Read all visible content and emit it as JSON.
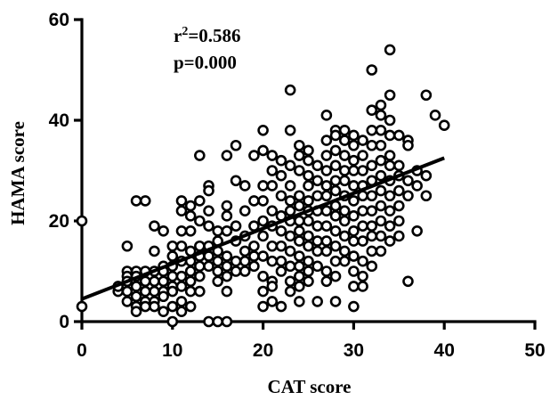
{
  "chart_data": {
    "type": "scatter",
    "title": "",
    "xlabel": "CAT score",
    "ylabel": "HAMA score",
    "xlim": [
      0,
      50
    ],
    "ylim": [
      0,
      60
    ],
    "xticks": [
      0,
      10,
      20,
      30,
      40,
      50
    ],
    "yticks": [
      0,
      20,
      40,
      60
    ],
    "grid": false,
    "annotations": {
      "r2_prefix": "r",
      "r2_sup": "2",
      "r2_value": "=0.586",
      "p_text": "p=0.000"
    },
    "fit_line": {
      "x": [
        0,
        40
      ],
      "y": [
        4.5,
        32.5
      ]
    },
    "points": [
      [
        0,
        20
      ],
      [
        0,
        3
      ],
      [
        4,
        6
      ],
      [
        4,
        7
      ],
      [
        5,
        15
      ],
      [
        5,
        10
      ],
      [
        5,
        9
      ],
      [
        5,
        8
      ],
      [
        5,
        6
      ],
      [
        5,
        4
      ],
      [
        6,
        24
      ],
      [
        6,
        10
      ],
      [
        6,
        9
      ],
      [
        6,
        7
      ],
      [
        6,
        5
      ],
      [
        6,
        3
      ],
      [
        6,
        2
      ],
      [
        7,
        24
      ],
      [
        7,
        10
      ],
      [
        7,
        8
      ],
      [
        7,
        6
      ],
      [
        7,
        4
      ],
      [
        7,
        3
      ],
      [
        8,
        19
      ],
      [
        8,
        14
      ],
      [
        8,
        10
      ],
      [
        8,
        8
      ],
      [
        8,
        6
      ],
      [
        8,
        4
      ],
      [
        8,
        3
      ],
      [
        9,
        18
      ],
      [
        9,
        11
      ],
      [
        9,
        10
      ],
      [
        9,
        8
      ],
      [
        9,
        6
      ],
      [
        9,
        5
      ],
      [
        9,
        2
      ],
      [
        10,
        15
      ],
      [
        10,
        13
      ],
      [
        10,
        11
      ],
      [
        10,
        9
      ],
      [
        10,
        7
      ],
      [
        10,
        6
      ],
      [
        10,
        3
      ],
      [
        10,
        0
      ],
      [
        11,
        24
      ],
      [
        11,
        22
      ],
      [
        11,
        18
      ],
      [
        11,
        15
      ],
      [
        11,
        12
      ],
      [
        11,
        9
      ],
      [
        11,
        7
      ],
      [
        11,
        4
      ],
      [
        11,
        2
      ],
      [
        12,
        23
      ],
      [
        12,
        21
      ],
      [
        12,
        18
      ],
      [
        12,
        14
      ],
      [
        12,
        12
      ],
      [
        12,
        10
      ],
      [
        12,
        8
      ],
      [
        12,
        6
      ],
      [
        12,
        3
      ],
      [
        13,
        33
      ],
      [
        13,
        24
      ],
      [
        13,
        20
      ],
      [
        13,
        15
      ],
      [
        13,
        13
      ],
      [
        13,
        11
      ],
      [
        13,
        9
      ],
      [
        13,
        6
      ],
      [
        14,
        27
      ],
      [
        14,
        26
      ],
      [
        14,
        22
      ],
      [
        14,
        19
      ],
      [
        14,
        15
      ],
      [
        14,
        13
      ],
      [
        14,
        11
      ],
      [
        14,
        0
      ],
      [
        15,
        18
      ],
      [
        15,
        16
      ],
      [
        15,
        14
      ],
      [
        15,
        12
      ],
      [
        15,
        10
      ],
      [
        15,
        8
      ],
      [
        15,
        0
      ],
      [
        16,
        33
      ],
      [
        16,
        23
      ],
      [
        16,
        21
      ],
      [
        16,
        18
      ],
      [
        16,
        13
      ],
      [
        16,
        11
      ],
      [
        16,
        9
      ],
      [
        16,
        6
      ],
      [
        16,
        0
      ],
      [
        17,
        35
      ],
      [
        17,
        28
      ],
      [
        17,
        19
      ],
      [
        17,
        16
      ],
      [
        17,
        12
      ],
      [
        17,
        10
      ],
      [
        18,
        27
      ],
      [
        18,
        22
      ],
      [
        18,
        17
      ],
      [
        18,
        14
      ],
      [
        18,
        12
      ],
      [
        18,
        10
      ],
      [
        19,
        33
      ],
      [
        19,
        24
      ],
      [
        19,
        19
      ],
      [
        19,
        15
      ],
      [
        19,
        13
      ],
      [
        19,
        11
      ],
      [
        20,
        38
      ],
      [
        20,
        34
      ],
      [
        20,
        27
      ],
      [
        20,
        24
      ],
      [
        20,
        20
      ],
      [
        20,
        17
      ],
      [
        20,
        13
      ],
      [
        20,
        9
      ],
      [
        20,
        6
      ],
      [
        20,
        3
      ],
      [
        21,
        33
      ],
      [
        21,
        30
      ],
      [
        21,
        27
      ],
      [
        21,
        22
      ],
      [
        21,
        19
      ],
      [
        21,
        15
      ],
      [
        21,
        12
      ],
      [
        21,
        8
      ],
      [
        21,
        7
      ],
      [
        21,
        4
      ],
      [
        22,
        32
      ],
      [
        22,
        29
      ],
      [
        22,
        25
      ],
      [
        22,
        21
      ],
      [
        22,
        18
      ],
      [
        22,
        15
      ],
      [
        22,
        12
      ],
      [
        22,
        10
      ],
      [
        22,
        3
      ],
      [
        23,
        46
      ],
      [
        23,
        38
      ],
      [
        23,
        31
      ],
      [
        23,
        27
      ],
      [
        23,
        24
      ],
      [
        23,
        22
      ],
      [
        23,
        20
      ],
      [
        23,
        17
      ],
      [
        23,
        14
      ],
      [
        23,
        11
      ],
      [
        23,
        8
      ],
      [
        23,
        6
      ],
      [
        24,
        35
      ],
      [
        24,
        33
      ],
      [
        24,
        30
      ],
      [
        24,
        25
      ],
      [
        24,
        23
      ],
      [
        24,
        20
      ],
      [
        24,
        18
      ],
      [
        24,
        16
      ],
      [
        24,
        13
      ],
      [
        24,
        11
      ],
      [
        24,
        9
      ],
      [
        24,
        7
      ],
      [
        24,
        4
      ],
      [
        25,
        34
      ],
      [
        25,
        32
      ],
      [
        25,
        29
      ],
      [
        25,
        27
      ],
      [
        25,
        24
      ],
      [
        25,
        22
      ],
      [
        25,
        20
      ],
      [
        25,
        17
      ],
      [
        25,
        15
      ],
      [
        25,
        12
      ],
      [
        25,
        10
      ],
      [
        25,
        8
      ],
      [
        26,
        31
      ],
      [
        26,
        28
      ],
      [
        26,
        25
      ],
      [
        26,
        22
      ],
      [
        26,
        19
      ],
      [
        26,
        16
      ],
      [
        26,
        14
      ],
      [
        26,
        11
      ],
      [
        26,
        4
      ],
      [
        27,
        41
      ],
      [
        27,
        36
      ],
      [
        27,
        33
      ],
      [
        27,
        30
      ],
      [
        27,
        27
      ],
      [
        27,
        25
      ],
      [
        27,
        22
      ],
      [
        27,
        19
      ],
      [
        27,
        16
      ],
      [
        27,
        14
      ],
      [
        27,
        10
      ],
      [
        27,
        8
      ],
      [
        28,
        38
      ],
      [
        28,
        37
      ],
      [
        28,
        34
      ],
      [
        28,
        31
      ],
      [
        28,
        28
      ],
      [
        28,
        26
      ],
      [
        28,
        23
      ],
      [
        28,
        21
      ],
      [
        28,
        18
      ],
      [
        28,
        15
      ],
      [
        28,
        12
      ],
      [
        28,
        9
      ],
      [
        28,
        4
      ],
      [
        29,
        38
      ],
      [
        29,
        36
      ],
      [
        29,
        33
      ],
      [
        29,
        30
      ],
      [
        29,
        28
      ],
      [
        29,
        25
      ],
      [
        29,
        22
      ],
      [
        29,
        20
      ],
      [
        29,
        17
      ],
      [
        29,
        14
      ],
      [
        29,
        12
      ],
      [
        30,
        37
      ],
      [
        30,
        35
      ],
      [
        30,
        32
      ],
      [
        30,
        30
      ],
      [
        30,
        27
      ],
      [
        30,
        24
      ],
      [
        30,
        21
      ],
      [
        30,
        18
      ],
      [
        30,
        16
      ],
      [
        30,
        13
      ],
      [
        30,
        10
      ],
      [
        30,
        7
      ],
      [
        30,
        3
      ],
      [
        31,
        36
      ],
      [
        31,
        33
      ],
      [
        31,
        30
      ],
      [
        31,
        27
      ],
      [
        31,
        25
      ],
      [
        31,
        22
      ],
      [
        31,
        19
      ],
      [
        31,
        16
      ],
      [
        31,
        12
      ],
      [
        31,
        9
      ],
      [
        31,
        7
      ],
      [
        32,
        50
      ],
      [
        32,
        42
      ],
      [
        32,
        38
      ],
      [
        32,
        35
      ],
      [
        32,
        31
      ],
      [
        32,
        28
      ],
      [
        32,
        25
      ],
      [
        32,
        22
      ],
      [
        32,
        19
      ],
      [
        32,
        17
      ],
      [
        32,
        14
      ],
      [
        32,
        11
      ],
      [
        33,
        43
      ],
      [
        33,
        41
      ],
      [
        33,
        38
      ],
      [
        33,
        35
      ],
      [
        33,
        32
      ],
      [
        33,
        29
      ],
      [
        33,
        26
      ],
      [
        33,
        23
      ],
      [
        33,
        20
      ],
      [
        33,
        17
      ],
      [
        33,
        14
      ],
      [
        34,
        54
      ],
      [
        34,
        45
      ],
      [
        34,
        40
      ],
      [
        34,
        37
      ],
      [
        34,
        33
      ],
      [
        34,
        31
      ],
      [
        34,
        28
      ],
      [
        34,
        25
      ],
      [
        34,
        22
      ],
      [
        34,
        19
      ],
      [
        34,
        16
      ],
      [
        35,
        37
      ],
      [
        35,
        31
      ],
      [
        35,
        29
      ],
      [
        35,
        26
      ],
      [
        35,
        23
      ],
      [
        35,
        20
      ],
      [
        35,
        17
      ],
      [
        36,
        36
      ],
      [
        36,
        35
      ],
      [
        36,
        28
      ],
      [
        36,
        25
      ],
      [
        36,
        8
      ],
      [
        37,
        30
      ],
      [
        37,
        27
      ],
      [
        37,
        18
      ],
      [
        38,
        45
      ],
      [
        38,
        29
      ],
      [
        38,
        25
      ],
      [
        39,
        41
      ],
      [
        40,
        39
      ]
    ]
  }
}
